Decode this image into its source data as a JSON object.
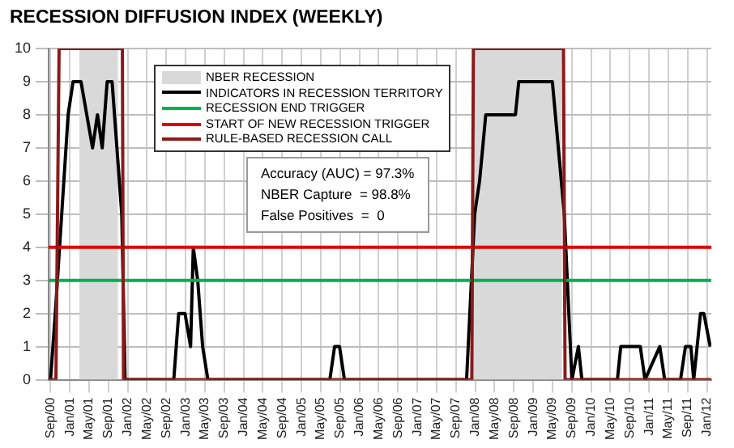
{
  "chart_data": {
    "type": "line",
    "title": "RECESSION DIFFUSION INDEX (WEEKLY)",
    "xlim": [
      "2000-08-20",
      "2012-01-28"
    ],
    "xticks": [
      {
        "value": "2000-09-01",
        "label": "Sep/00"
      },
      {
        "value": "2001-01-01",
        "label": "Jan/01"
      },
      {
        "value": "2001-05-01",
        "label": "May/01"
      },
      {
        "value": "2001-09-01",
        "label": "Sep/01"
      },
      {
        "value": "2002-01-01",
        "label": "Jan/02"
      },
      {
        "value": "2002-05-01",
        "label": "May/02"
      },
      {
        "value": "2002-09-01",
        "label": "Sep/02"
      },
      {
        "value": "2003-01-01",
        "label": "Jan/03"
      },
      {
        "value": "2003-05-01",
        "label": "May/03"
      },
      {
        "value": "2003-09-01",
        "label": "Sep/03"
      },
      {
        "value": "2004-01-01",
        "label": "Jan/04"
      },
      {
        "value": "2004-05-01",
        "label": "May/04"
      },
      {
        "value": "2004-09-01",
        "label": "Sep/04"
      },
      {
        "value": "2005-01-01",
        "label": "Jan/05"
      },
      {
        "value": "2005-05-01",
        "label": "May/05"
      },
      {
        "value": "2005-09-01",
        "label": "Sep/05"
      },
      {
        "value": "2006-01-01",
        "label": "Jan/06"
      },
      {
        "value": "2006-05-01",
        "label": "May/06"
      },
      {
        "value": "2006-09-01",
        "label": "Sep/06"
      },
      {
        "value": "2007-01-01",
        "label": "Jan/07"
      },
      {
        "value": "2007-05-01",
        "label": "May/07"
      },
      {
        "value": "2007-09-01",
        "label": "Sep/07"
      },
      {
        "value": "2008-01-01",
        "label": "Jan/08"
      },
      {
        "value": "2008-05-01",
        "label": "May/08"
      },
      {
        "value": "2008-09-01",
        "label": "Sep/08"
      },
      {
        "value": "2009-01-01",
        "label": "Jan/09"
      },
      {
        "value": "2009-05-01",
        "label": "May/09"
      },
      {
        "value": "2009-09-01",
        "label": "Sep/09"
      },
      {
        "value": "2010-01-01",
        "label": "Jan/10"
      },
      {
        "value": "2010-05-01",
        "label": "May/10"
      },
      {
        "value": "2010-09-01",
        "label": "Sep/10"
      },
      {
        "value": "2011-01-01",
        "label": "Jan/11"
      },
      {
        "value": "2011-05-01",
        "label": "May/11"
      },
      {
        "value": "2011-09-01",
        "label": "Sep/11"
      },
      {
        "value": "2012-01-01",
        "label": "Jan/12"
      }
    ],
    "ylim": [
      0,
      10
    ],
    "yticks": [
      0,
      1,
      2,
      3,
      4,
      5,
      6,
      7,
      8,
      9,
      10
    ],
    "grid": true,
    "legend": "top left",
    "annotations": [
      "Accuracy (AUC) = 97.3%",
      "NBER Capture  = 98.8%",
      "False Positives  =  0"
    ],
    "series": [
      {
        "name": "NBER RECESSION",
        "type": "area",
        "color": "#d9d9d9",
        "x": [
          "2001-03-01",
          "2001-11-01",
          "2004-01-01",
          "2007-12-15",
          "2009-07-01"
        ],
        "values": [
          10,
          10,
          null,
          10,
          10
        ]
      },
      {
        "name": "INDICATORS IN RECESSION TERRITORY",
        "type": "line",
        "color": "#000000",
        "x": [
          "2000-09-01",
          "2000-10-01",
          "2000-12-21",
          "2001-01-21",
          "2001-03-12",
          "2001-05-24",
          "2001-06-24",
          "2001-07-24",
          "2001-08-24",
          "2001-09-24",
          "2001-11-24",
          "2001-12-15",
          "2002-10-18",
          "2002-11-18",
          "2002-12-28",
          "2003-02-01",
          "2003-02-18",
          "2003-03-18",
          "2003-04-18",
          "2003-05-21",
          "2005-06-28",
          "2005-07-28",
          "2005-08-28",
          "2005-09-28",
          "2007-11-07",
          "2007-12-28",
          "2008-01-28",
          "2008-03-07",
          "2008-09-10",
          "2008-10-01",
          "2009-05-01",
          "2009-07-15",
          "2009-09-01",
          "2009-10-12",
          "2009-11-03",
          "2010-06-15",
          "2010-07-06",
          "2010-11-06",
          "2010-12-06",
          "2011-03-09",
          "2011-04-09",
          "2011-07-18",
          "2011-08-18",
          "2011-09-21",
          "2011-10-09",
          "2011-11-21",
          "2011-12-12",
          "2012-01-21"
        ],
        "values": [
          0,
          2,
          8,
          9,
          9,
          7,
          8,
          7,
          9,
          9,
          5,
          0,
          0,
          2,
          2,
          1,
          4,
          3,
          1,
          0,
          0,
          1,
          1,
          0,
          0,
          5,
          6,
          8,
          8,
          9,
          9,
          5,
          0,
          1,
          0,
          0,
          1,
          1,
          0,
          1,
          0,
          0,
          1,
          1,
          0,
          2,
          2,
          1
        ]
      },
      {
        "name": "RECESSION END TRIGGER",
        "type": "line",
        "color": "#00b050",
        "x": [
          "2000-08-20",
          "2012-01-28"
        ],
        "values": [
          3,
          3
        ]
      },
      {
        "name": "START OF NEW RECESSION TRIGGER",
        "type": "line",
        "color": "#e00000",
        "x": [
          "2000-08-20",
          "2012-01-28"
        ],
        "values": [
          4,
          4
        ]
      },
      {
        "name": "RULE-BASED RECESSION CALL",
        "type": "line",
        "color": "#8b1a1a",
        "x": [
          "2000-08-20",
          "2000-10-05",
          "2000-10-25",
          "2001-11-28",
          "2001-12-05",
          "2007-12-10",
          "2007-12-20",
          "2009-07-10",
          "2009-07-20",
          "2012-01-28"
        ],
        "values": [
          0,
          0,
          10,
          10,
          0,
          0,
          10,
          10,
          0,
          0
        ]
      }
    ]
  }
}
